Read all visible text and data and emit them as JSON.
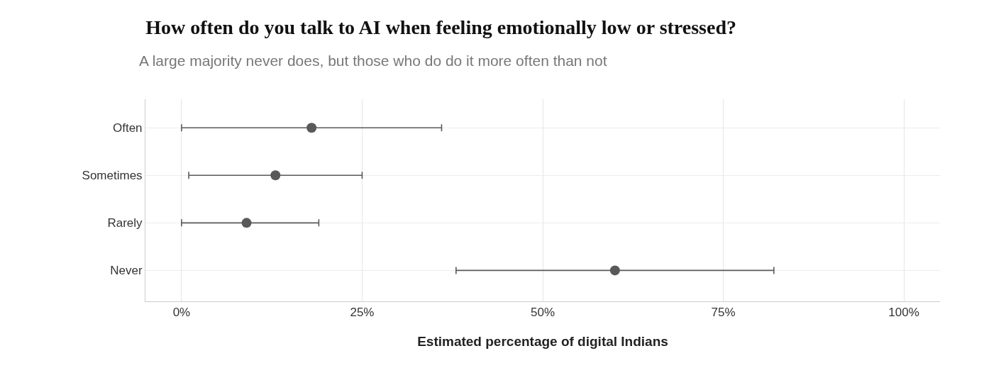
{
  "chart_data": {
    "type": "scatter",
    "orientation": "horizontal",
    "title": "How often do you talk to AI when feeling emotionally low or stressed?",
    "subtitle": "A large majority never does, but those who do do it more often than not",
    "xlabel": "Estimated percentage of digital Indians",
    "categories": [
      "Often",
      "Sometimes",
      "Rarely",
      "Never"
    ],
    "values": [
      18,
      13,
      9,
      60
    ],
    "errors": [
      [
        0,
        36
      ],
      [
        1,
        25
      ],
      [
        0,
        19
      ],
      [
        38,
        82
      ]
    ],
    "color": "#595959",
    "marker": "circle",
    "xlim": [
      -5,
      105
    ],
    "xticks": [
      {
        "value": 0,
        "label": "0%"
      },
      {
        "value": 25,
        "label": "25%"
      },
      {
        "value": 50,
        "label": "50%"
      },
      {
        "value": 75,
        "label": "75%"
      },
      {
        "value": 100,
        "label": "100%"
      }
    ],
    "grid": true
  }
}
